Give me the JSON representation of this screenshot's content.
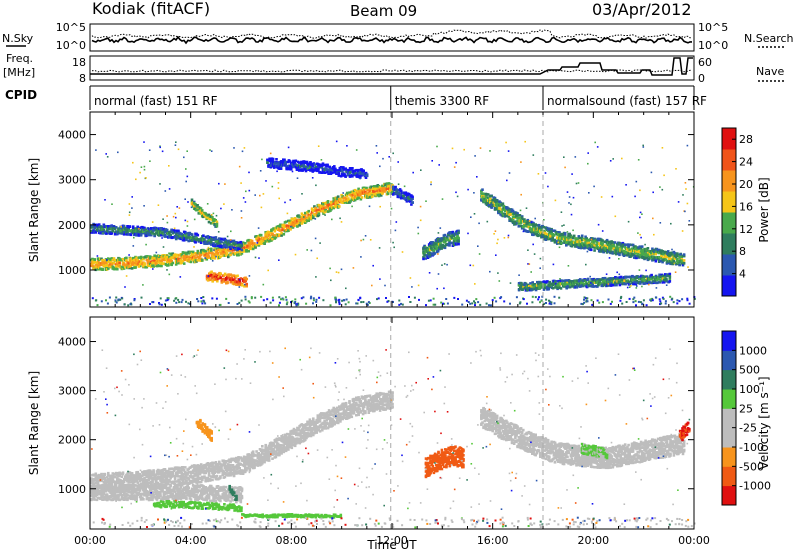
{
  "header": {
    "station": "Kodiak (fitACF)",
    "beam": "Beam 09",
    "date": "03/Apr/2012"
  },
  "side_labels": {
    "nsky": "N.Sky",
    "freq_line1": "Freq.",
    "freq_line2": "[MHz]",
    "cpid": "CPID",
    "nsearch": "N.Search",
    "nave": "Nave"
  },
  "noise_axis": {
    "left_top": "10^5",
    "left_bottom": "10^0",
    "right_top": "10^5",
    "right_bottom": "10^0"
  },
  "freq_axis": {
    "left_top": "18",
    "left_bottom": "8",
    "right_top": "60",
    "right_bottom": "0"
  },
  "cpid_segments": [
    {
      "label": "normal (fast) 151 RF",
      "start_hour": 0,
      "end_hour": 11.95
    },
    {
      "label": "themis 3300 RF",
      "start_hour": 11.95,
      "end_hour": 18.0
    },
    {
      "label": "normalsound (fast) 157 RF",
      "start_hour": 18.0,
      "end_hour": 24
    }
  ],
  "colors": {
    "power_scale": [
      "#1515f0",
      "#2b58b0",
      "#2f7d5e",
      "#49a94b",
      "#f5c518",
      "#f7941d",
      "#f0541a",
      "#e01010"
    ],
    "velocity_scale": [
      "#e01010",
      "#f05a14",
      "#f7941d",
      "#bdbdbd",
      "#bdbdbd",
      "#55c83a",
      "#2f7d5e",
      "#2b58b0",
      "#1515f0"
    ],
    "gray_scatter": "#bdbdbd"
  },
  "chart_data": [
    {
      "type": "heatmap",
      "panel": "power",
      "ylabel": "Slant Range [km]",
      "ylim": [
        180,
        4500
      ],
      "xlim": [
        0,
        24
      ],
      "yticks": [
        "1000",
        "2000",
        "3000",
        "4000"
      ],
      "colorbar_label": "Power [dB]",
      "colorbar_ticks": [
        "4",
        "8",
        "12",
        "16",
        "20",
        "24",
        "28"
      ],
      "colorbar_range": [
        0,
        30
      ],
      "bands": [
        {
          "x": [
            0,
            1.5,
            3,
            4.5,
            6,
            7.5,
            9,
            10.5,
            12
          ],
          "y": [
            1150,
            1180,
            1250,
            1350,
            1500,
            1900,
            2350,
            2700,
            2850
          ],
          "width": 180,
          "power": 22
        },
        {
          "x": [
            0,
            1.5,
            3,
            4.5,
            6
          ],
          "y": [
            1950,
            1900,
            1850,
            1700,
            1550
          ],
          "width": 140,
          "power": 12
        },
        {
          "x": [
            4.6,
            5.2,
            5.8,
            6.2
          ],
          "y": [
            900,
            850,
            800,
            760
          ],
          "width": 150,
          "power": 28
        },
        {
          "x": [
            4.0,
            4.3,
            4.6,
            5.0
          ],
          "y": [
            2500,
            2350,
            2200,
            2050
          ],
          "width": 120,
          "power": 18
        },
        {
          "x": [
            12,
            12.8
          ],
          "y": [
            2800,
            2550
          ],
          "width": 150,
          "power": 9
        },
        {
          "x": [
            13.2,
            13.7,
            14.2,
            14.6
          ],
          "y": [
            1400,
            1550,
            1700,
            1750
          ],
          "width": 220,
          "power": 14
        },
        {
          "x": [
            15.5,
            16.5,
            17.5,
            18.5,
            19.5,
            20.5,
            21.5,
            22.5,
            23.6
          ],
          "y": [
            2700,
            2300,
            1950,
            1750,
            1650,
            1550,
            1450,
            1350,
            1250
          ],
          "width": 200,
          "power": 16
        },
        {
          "x": [
            17,
            18.5,
            20,
            21.5,
            23
          ],
          "y": [
            650,
            700,
            750,
            800,
            850
          ],
          "width": 130,
          "power": 14
        },
        {
          "x": [
            7,
            9,
            10,
            11
          ],
          "y": [
            3400,
            3300,
            3200,
            3150
          ],
          "width": 150,
          "power": 7
        }
      ]
    },
    {
      "type": "heatmap",
      "panel": "velocity",
      "xlabel": "Time UT",
      "ylabel": "Slant Range [km]",
      "ylim": [
        180,
        4500
      ],
      "xlim": [
        0,
        24
      ],
      "xticks": [
        "00:00",
        "04:00",
        "08:00",
        "12:00",
        "16:00",
        "20:00",
        "00:00"
      ],
      "yticks": [
        "1000",
        "2000",
        "3000",
        "4000"
      ],
      "colorbar_label": "Velocity [m s⁻¹]",
      "colorbar_ticks": [
        "1000",
        "500",
        "100",
        "25",
        "-25",
        "-100",
        "-500",
        "-1000"
      ],
      "bands": [
        {
          "x": [
            0,
            1.5,
            3,
            4.5,
            6,
            7.5,
            9,
            10.5,
            12
          ],
          "y": [
            1150,
            1180,
            1250,
            1350,
            1500,
            1900,
            2350,
            2700,
            2850
          ],
          "width": 260,
          "velocity": 0
        },
        {
          "x": [
            0,
            2,
            4,
            6
          ],
          "y": [
            950,
            950,
            950,
            900
          ],
          "width": 220,
          "velocity": 0
        },
        {
          "x": [
            2.5,
            3.5,
            4.5,
            5.5,
            6
          ],
          "y": [
            720,
            700,
            680,
            650,
            620
          ],
          "width": 90,
          "velocity": 120
        },
        {
          "x": [
            5.5,
            5.8
          ],
          "y": [
            1050,
            800
          ],
          "width": 90,
          "velocity": 600
        },
        {
          "x": [
            6,
            7,
            8,
            9,
            10
          ],
          "y": [
            480,
            470,
            480,
            470,
            470
          ],
          "width": 40,
          "velocity": 120
        },
        {
          "x": [
            4.2,
            4.5,
            4.8
          ],
          "y": [
            2400,
            2250,
            2100
          ],
          "width": 150,
          "velocity": -120
        },
        {
          "x": [
            13.3,
            13.8,
            14.4,
            14.8
          ],
          "y": [
            1450,
            1600,
            1700,
            1650
          ],
          "width": 280,
          "velocity": -350
        },
        {
          "x": [
            15.5,
            16.5,
            17.5,
            18.5,
            19.5,
            20.5,
            21.5,
            22.5,
            23.6
          ],
          "y": [
            2500,
            2200,
            1950,
            1750,
            1700,
            1650,
            1750,
            1850,
            1950
          ],
          "width": 300,
          "velocity": 0
        },
        {
          "x": [
            19.5,
            20,
            20.5
          ],
          "y": [
            1850,
            1800,
            1750
          ],
          "width": 150,
          "velocity": 80
        },
        {
          "x": [
            23.4,
            23.8
          ],
          "y": [
            2100,
            2300
          ],
          "width": 180,
          "velocity": -700
        }
      ]
    }
  ]
}
